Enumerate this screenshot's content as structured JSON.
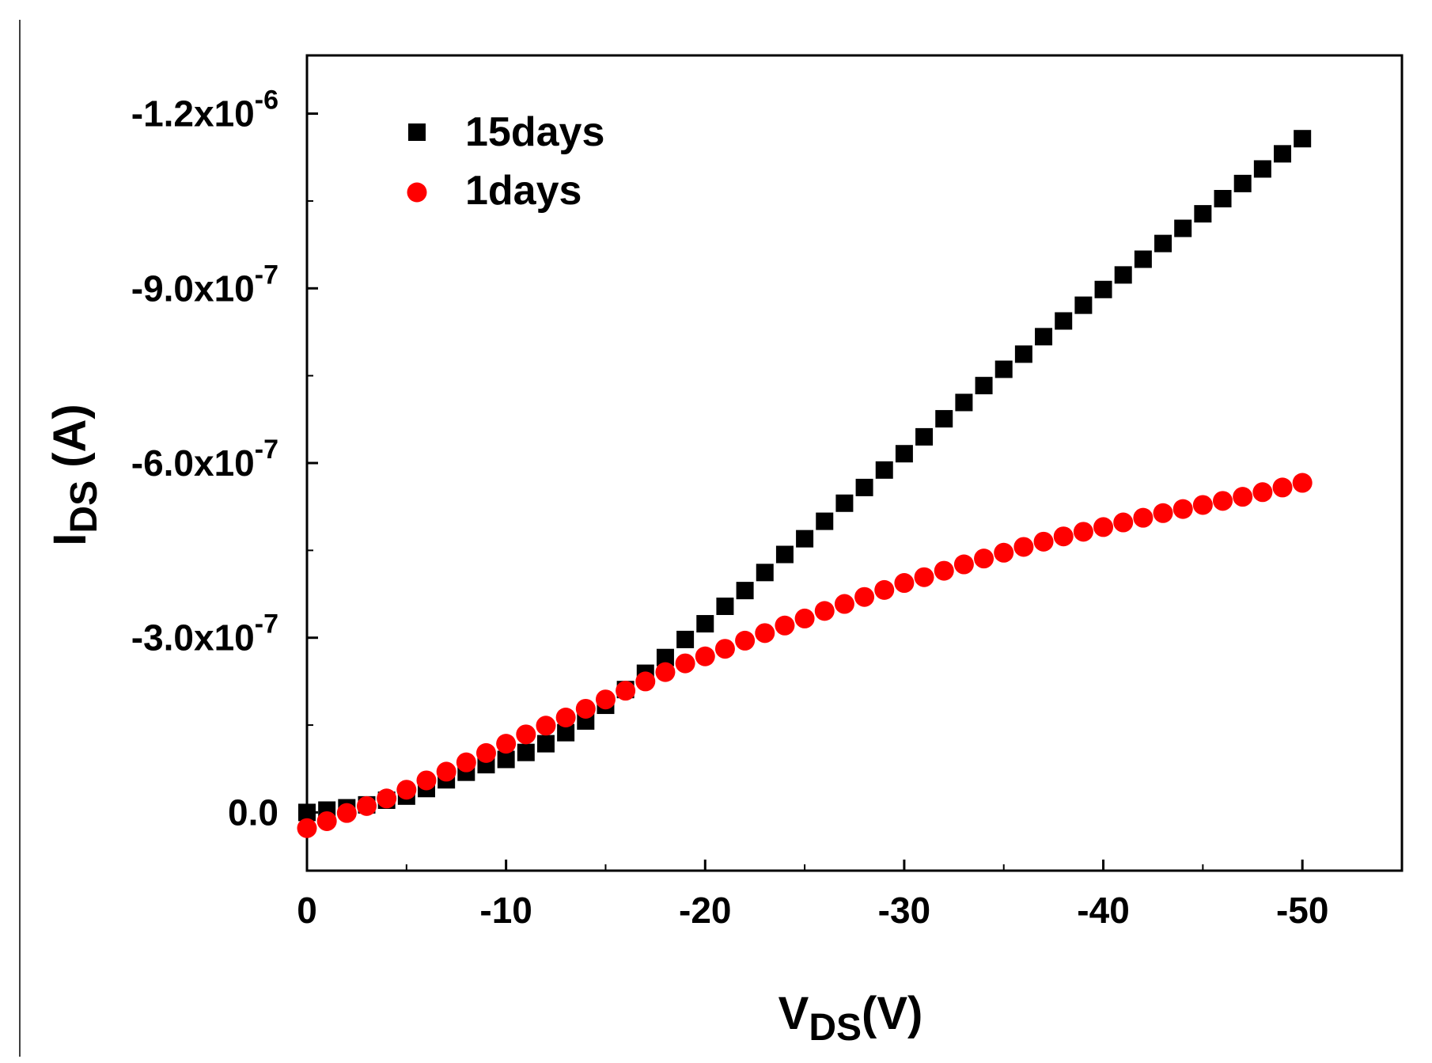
{
  "chart_data": {
    "type": "scatter",
    "title": "",
    "xlabel": {
      "main": "V",
      "sub": "DS",
      "suffix": "(V)"
    },
    "ylabel": {
      "main": "I",
      "sub": "DS",
      "suffix": " (A)"
    },
    "xlim": [
      0,
      -55
    ],
    "ylim": [
      1e-07,
      -1.3e-06
    ],
    "x_ticks": [
      {
        "value": 0,
        "label": "0"
      },
      {
        "value": -10,
        "label": "-10"
      },
      {
        "value": -20,
        "label": "-20"
      },
      {
        "value": -30,
        "label": "-30"
      },
      {
        "value": -40,
        "label": "-40"
      },
      {
        "value": -50,
        "label": "-50"
      }
    ],
    "y_ticks": [
      {
        "value": 0,
        "mantissa": "0.0",
        "exp": ""
      },
      {
        "value": -3e-07,
        "mantissa": "-3.0x10",
        "exp": "-7"
      },
      {
        "value": -6e-07,
        "mantissa": "-6.0x10",
        "exp": "-7"
      },
      {
        "value": -9e-07,
        "mantissa": "-9.0x10",
        "exp": "-7"
      },
      {
        "value": -1.2e-06,
        "mantissa": "-1.2x10",
        "exp": "-6"
      }
    ],
    "legend_position": "top-left",
    "x": [
      0,
      -1,
      -2,
      -3,
      -4,
      -5,
      -6,
      -7,
      -8,
      -9,
      -10,
      -11,
      -12,
      -13,
      -14,
      -15,
      -16,
      -17,
      -18,
      -19,
      -20,
      -21,
      -22,
      -23,
      -24,
      -25,
      -26,
      -27,
      -28,
      -29,
      -30,
      -31,
      -32,
      -33,
      -34,
      -35,
      -36,
      -37,
      -38,
      -39,
      -40,
      -41,
      -42,
      -43,
      -44,
      -45,
      -46,
      -47,
      -48,
      -49,
      -50
    ],
    "series": [
      {
        "name": "15days",
        "marker": "square",
        "color": "#000000",
        "values": [
          0,
          -4e-09,
          -8e-09,
          -1.3e-08,
          -2.1e-08,
          -2.8e-08,
          -4.1e-08,
          -5.6e-08,
          -6.9e-08,
          -8.2e-08,
          -9.1e-08,
          -1.03e-07,
          -1.18e-07,
          -1.37e-07,
          -1.57e-07,
          -1.84e-07,
          -2.11e-07,
          -2.39e-07,
          -2.66e-07,
          -2.97e-07,
          -3.24e-07,
          -3.54e-07,
          -3.81e-07,
          -4.12e-07,
          -4.43e-07,
          -4.7e-07,
          -5e-07,
          -5.31e-07,
          -5.58e-07,
          -5.88e-07,
          -6.16e-07,
          -6.45e-07,
          -6.76e-07,
          -7.04e-07,
          -7.33e-07,
          -7.61e-07,
          -7.87e-07,
          -8.17e-07,
          -8.44e-07,
          -8.71e-07,
          -8.98e-07,
          -9.23e-07,
          -9.5e-07,
          -9.77e-07,
          -1.003e-06,
          -1.028e-06,
          -1.054e-06,
          -1.08e-06,
          -1.105e-06,
          -1.131e-06,
          -1.157e-06
        ]
      },
      {
        "name": "1days",
        "marker": "circle",
        "color": "#ff0000",
        "values": [
          2.7e-08,
          1.5e-08,
          1e-09,
          -1.1e-08,
          -2.4e-08,
          -3.9e-08,
          -5.5e-08,
          -7e-08,
          -8.6e-08,
          -1.02e-07,
          -1.18e-07,
          -1.34e-07,
          -1.49e-07,
          -1.63e-07,
          -1.78e-07,
          -1.94e-07,
          -2.09e-07,
          -2.25e-07,
          -2.41e-07,
          -2.56e-07,
          -2.68e-07,
          -2.81e-07,
          -2.95e-07,
          -3.08e-07,
          -3.21e-07,
          -3.33e-07,
          -3.46e-07,
          -3.58e-07,
          -3.7e-07,
          -3.82e-07,
          -3.94e-07,
          -4.04e-07,
          -4.15e-07,
          -4.26e-07,
          -4.36e-07,
          -4.46e-07,
          -4.56e-07,
          -4.65e-07,
          -4.74e-07,
          -4.82e-07,
          -4.9e-07,
          -4.98e-07,
          -5.06e-07,
          -5.14e-07,
          -5.21e-07,
          -5.28e-07,
          -5.35e-07,
          -5.42e-07,
          -5.5e-07,
          -5.58e-07,
          -5.66e-07
        ]
      }
    ]
  }
}
